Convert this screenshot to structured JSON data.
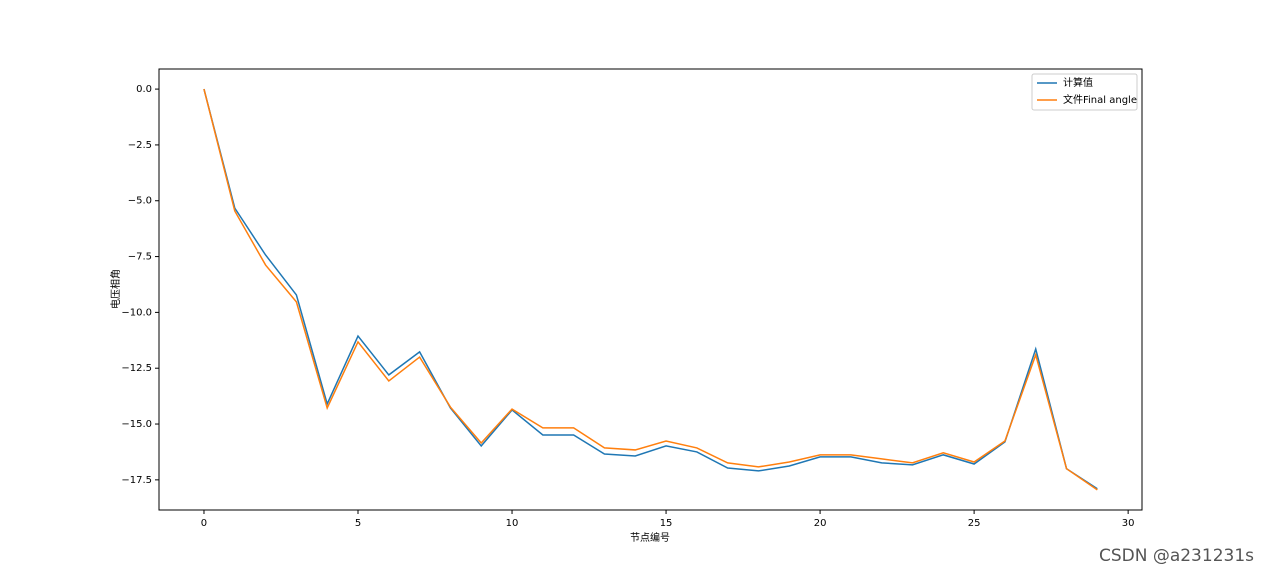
{
  "chart_data": {
    "type": "line",
    "x_label": "节点编号",
    "y_label": "电压相角",
    "x": [
      0,
      1,
      2,
      3,
      4,
      5,
      6,
      7,
      8,
      9,
      10,
      11,
      12,
      13,
      14,
      15,
      16,
      17,
      18,
      19,
      20,
      21,
      22,
      23,
      24,
      25,
      26,
      27,
      28,
      29
    ],
    "series": [
      {
        "name": "计算值",
        "color": "#1f77b4",
        "values": [
          0,
          -5.33,
          -7.43,
          -9.22,
          -14.1,
          -11.06,
          -12.8,
          -11.77,
          -14.28,
          -15.98,
          -14.37,
          -15.49,
          -15.49,
          -16.34,
          -16.43,
          -15.98,
          -16.25,
          -16.97,
          -17.1,
          -16.88,
          -16.47,
          -16.47,
          -16.74,
          -16.83,
          -16.38,
          -16.79,
          -15.8,
          -11.64,
          -17.0,
          -17.9
        ]
      },
      {
        "name": "文件Final angle",
        "color": "#ff7f0e",
        "values": [
          0,
          -5.46,
          -7.88,
          -9.53,
          -14.28,
          -11.32,
          -13.07,
          -12.0,
          -14.24,
          -15.85,
          -14.33,
          -15.17,
          -15.17,
          -16.07,
          -16.16,
          -15.76,
          -16.07,
          -16.74,
          -16.92,
          -16.7,
          -16.38,
          -16.38,
          -16.56,
          -16.74,
          -16.29,
          -16.7,
          -15.76,
          -11.9,
          -17.0,
          -17.95
        ]
      }
    ],
    "xlim": [
      -1.46,
      30.45
    ],
    "ylim": [
      -18.85,
      0.9
    ],
    "xticks": [
      0,
      5,
      10,
      15,
      20,
      25,
      30
    ],
    "yticks": [
      {
        "value": 0,
        "label": "0.0"
      },
      {
        "value": -2.5,
        "label": "−2.5"
      },
      {
        "value": -5,
        "label": "−5.0"
      },
      {
        "value": -7.5,
        "label": "−7.5"
      },
      {
        "value": -10,
        "label": "−10.0"
      },
      {
        "value": -12.5,
        "label": "−12.5"
      },
      {
        "value": -15,
        "label": "−15.0"
      },
      {
        "value": -17.5,
        "label": "−17.5"
      }
    ],
    "legend": "upper right",
    "watermark": "CSDN @a231231s"
  }
}
